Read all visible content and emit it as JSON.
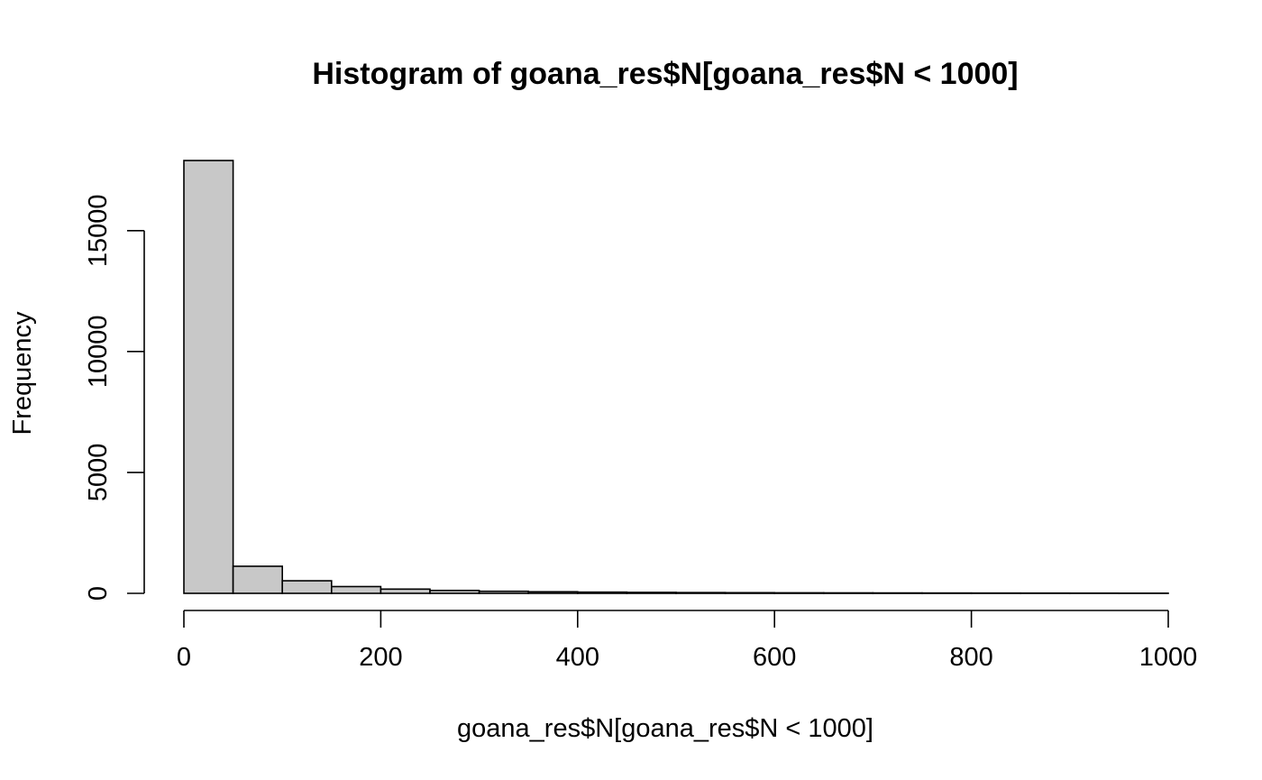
{
  "chart_data": {
    "type": "bar",
    "title": "Histogram of goana_res$N[goana_res$N < 1000]",
    "xlabel": "goana_res$N[goana_res$N < 1000]",
    "ylabel": "Frequency",
    "bin_edges": [
      0,
      50,
      100,
      150,
      200,
      250,
      300,
      350,
      400,
      450,
      500,
      550,
      600,
      650,
      700,
      750,
      800,
      850,
      900,
      950,
      1000
    ],
    "values": [
      17900,
      1120,
      520,
      280,
      175,
      120,
      85,
      65,
      50,
      40,
      32,
      27,
      22,
      19,
      16,
      13,
      11,
      10,
      8,
      6
    ],
    "xlim": [
      0,
      1000
    ],
    "ylim": [
      0,
      17900
    ],
    "x_ticks": [
      0,
      200,
      400,
      600,
      800,
      1000
    ],
    "x_tick_labels": [
      "0",
      "200",
      "400",
      "600",
      "800",
      "1000"
    ],
    "y_ticks": [
      0,
      5000,
      10000,
      15000
    ],
    "y_tick_labels": [
      "0",
      "5000",
      "10000",
      "15000"
    ],
    "bar_fill": "#c8c8c8",
    "bar_stroke": "#000000",
    "grid": false,
    "legend": "none"
  }
}
